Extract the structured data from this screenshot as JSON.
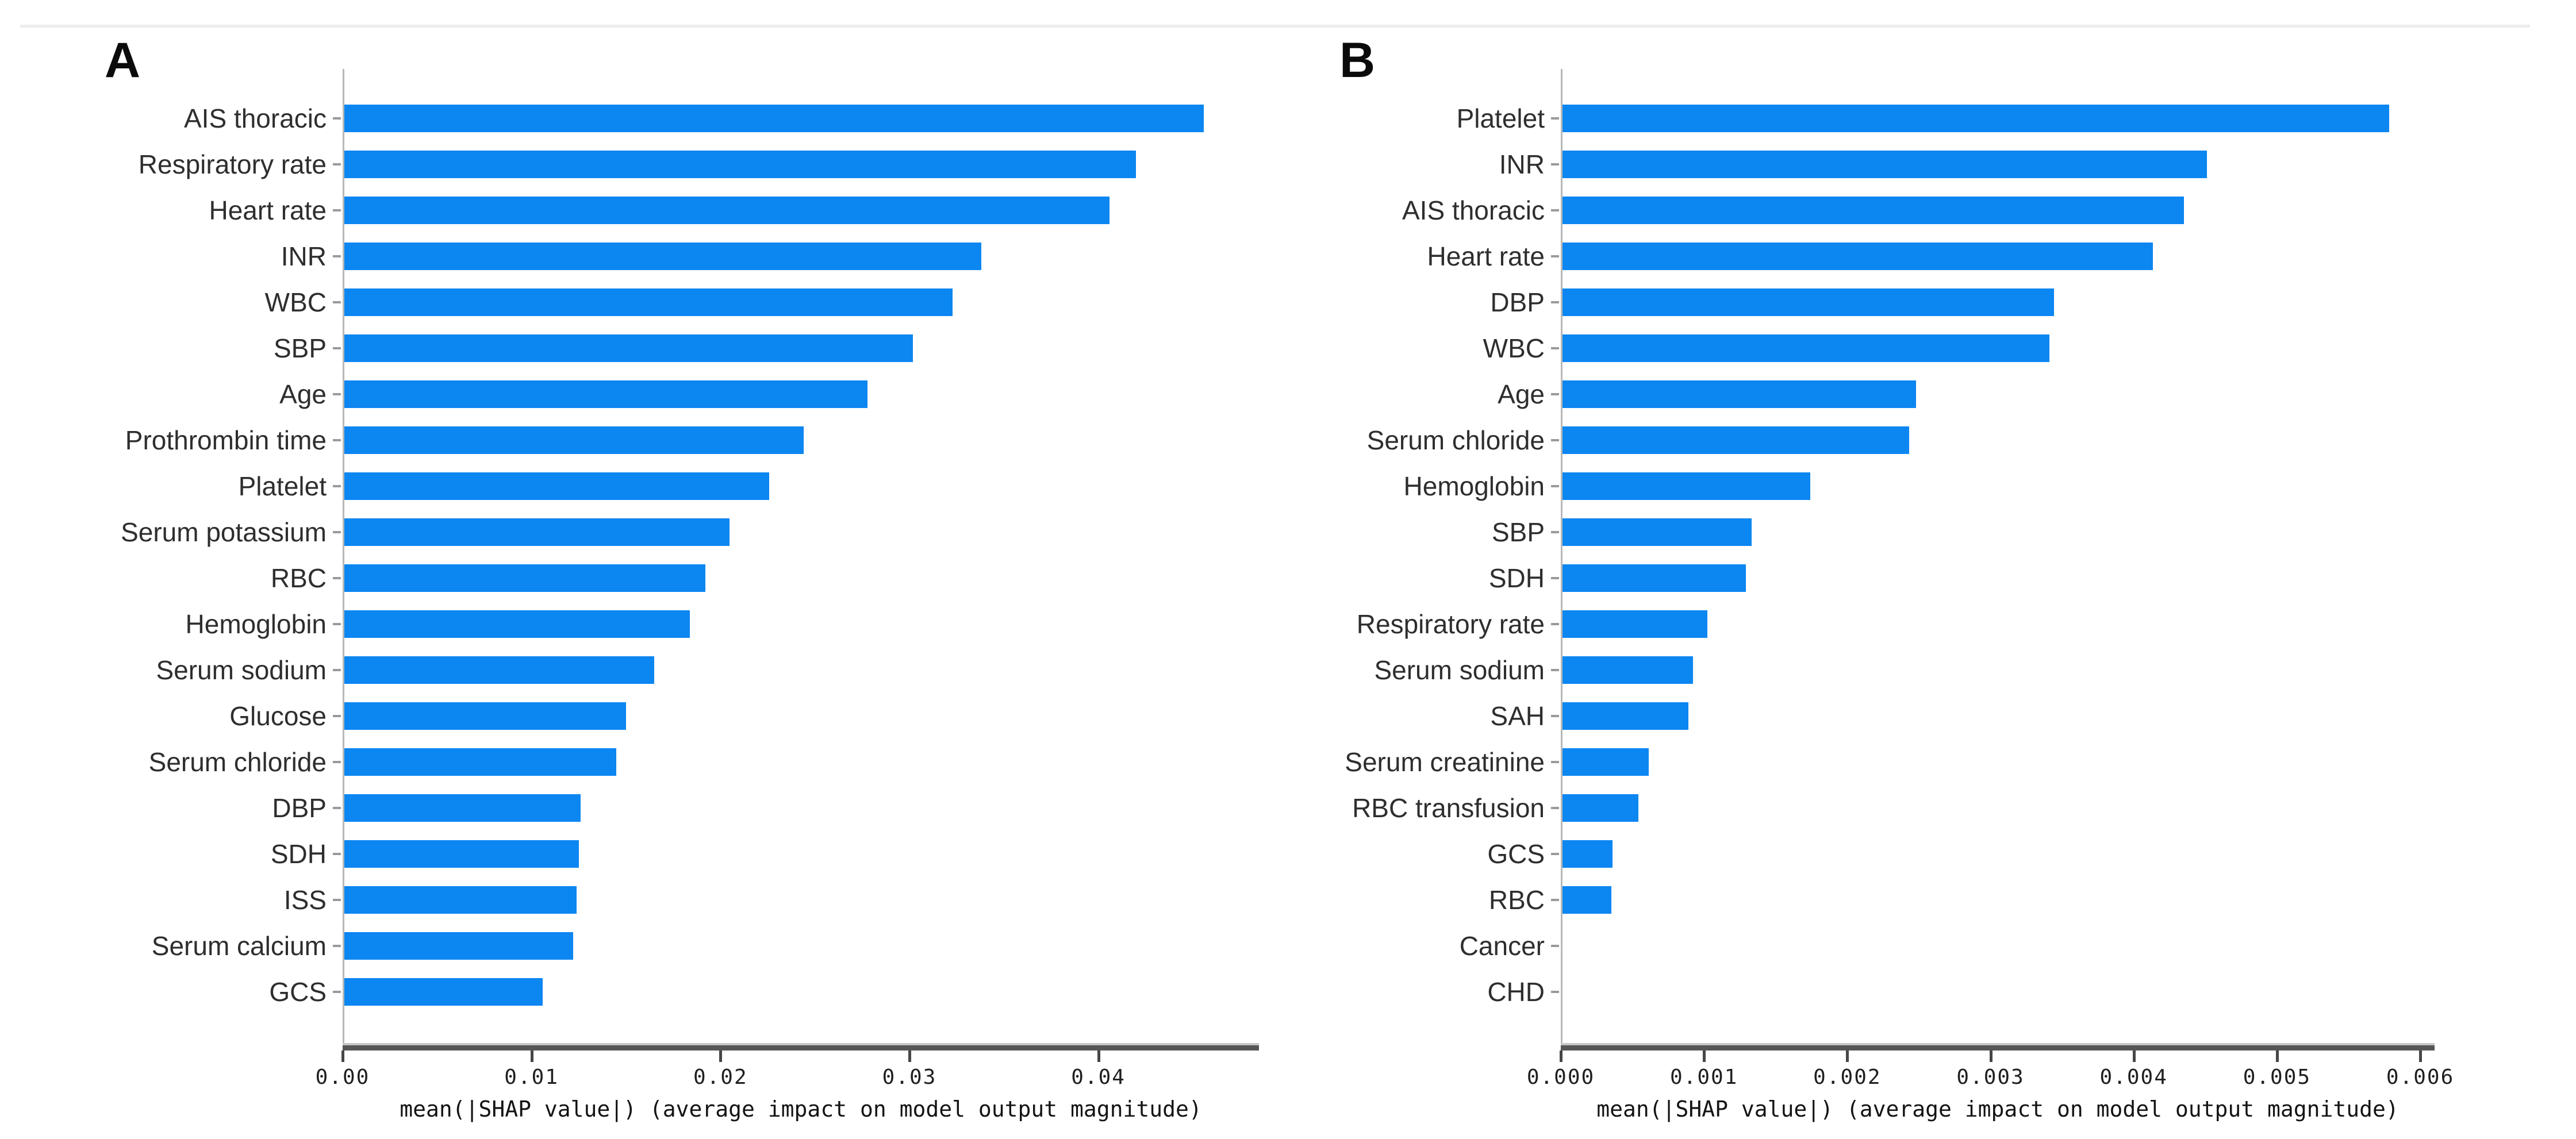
{
  "figure": {
    "bar_color": "#0c86f1",
    "panel_a_title": "A",
    "panel_b_title": "B"
  },
  "chart_data": [
    {
      "type": "bar",
      "orientation": "horizontal",
      "title": "A",
      "xlabel": "mean(|SHAP value|) (average impact on model output magnitude)",
      "legend": "none",
      "grid": false,
      "xlim": [
        0,
        0.0485
      ],
      "xticks": [
        0.0,
        0.01,
        0.02,
        0.03,
        0.04
      ],
      "xtick_labels": [
        "0.00",
        "0.01",
        "0.02",
        "0.03",
        "0.04"
      ],
      "categories": [
        "AIS thoracic",
        "Respiratory rate",
        "Heart rate",
        "INR",
        "WBC",
        "SBP",
        "Age",
        "Prothrombin time",
        "Platelet",
        "Serum potassium",
        "RBC",
        "Hemoglobin",
        "Serum sodium",
        "Glucose",
        "Serum chloride",
        "DBP",
        "SDH",
        "ISS",
        "Serum calcium",
        "GCS"
      ],
      "values": [
        0.0455,
        0.0419,
        0.0405,
        0.0337,
        0.0322,
        0.0301,
        0.0277,
        0.0243,
        0.0225,
        0.0204,
        0.0191,
        0.0183,
        0.0164,
        0.0149,
        0.0144,
        0.0125,
        0.0124,
        0.0123,
        0.0121,
        0.0105
      ]
    },
    {
      "type": "bar",
      "orientation": "horizontal",
      "title": "B",
      "xlabel": "mean(|SHAP value|) (average impact on model output magnitude)",
      "legend": "none",
      "grid": false,
      "xlim": [
        0,
        0.0061
      ],
      "xticks": [
        0.0,
        0.001,
        0.002,
        0.003,
        0.004,
        0.005,
        0.006
      ],
      "xtick_labels": [
        "0.000",
        "0.001",
        "0.002",
        "0.003",
        "0.004",
        "0.005",
        "0.006"
      ],
      "categories": [
        "Platelet",
        "INR",
        "AIS thoracic",
        "Heart rate",
        "DBP",
        "WBC",
        "Age",
        "Serum chloride",
        "Hemoglobin",
        "SBP",
        "SDH",
        "Respiratory rate",
        "Serum sodium",
        "SAH",
        "Serum creatinine",
        "RBC transfusion",
        "GCS",
        "RBC",
        "Cancer",
        "CHD"
      ],
      "values": [
        0.00577,
        0.0045,
        0.00434,
        0.00412,
        0.00343,
        0.0034,
        0.00247,
        0.00242,
        0.00173,
        0.00132,
        0.00128,
        0.00101,
        0.00091,
        0.00088,
        0.0006,
        0.00053,
        0.00035,
        0.00034,
        0,
        0
      ]
    }
  ]
}
